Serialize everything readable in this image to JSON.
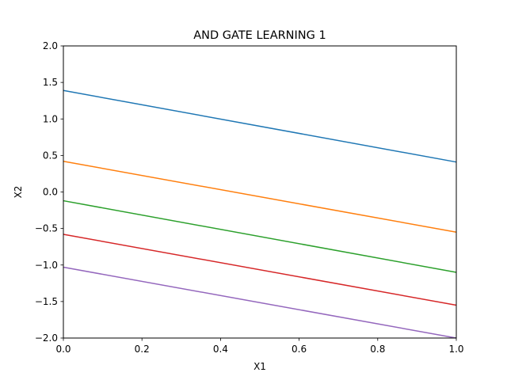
{
  "chart_data": {
    "type": "line",
    "title": "AND GATE LEARNING 1",
    "xlabel": "X1",
    "ylabel": "X2",
    "xlim": [
      0.0,
      1.0
    ],
    "ylim": [
      -2.0,
      2.0
    ],
    "xticks": [
      0.0,
      0.2,
      0.4,
      0.6,
      0.8,
      1.0
    ],
    "yticks": [
      -2.0,
      -1.5,
      -1.0,
      -0.5,
      0.0,
      0.5,
      1.0,
      1.5,
      2.0
    ],
    "xtick_labels": [
      "0.0",
      "0.2",
      "0.4",
      "0.6",
      "0.8",
      "1.0"
    ],
    "ytick_labels": [
      "−2.0",
      "−1.5",
      "−1.0",
      "−0.5",
      "0.0",
      "0.5",
      "1.0",
      "1.5",
      "2.0"
    ],
    "grid": false,
    "legend": "none",
    "series": [
      {
        "color": "#1f77b4",
        "x": [
          0.0,
          1.0
        ],
        "y": [
          1.39,
          0.41
        ]
      },
      {
        "color": "#ff7f0e",
        "x": [
          0.0,
          1.0
        ],
        "y": [
          0.42,
          -0.55
        ]
      },
      {
        "color": "#2ca02c",
        "x": [
          0.0,
          1.0
        ],
        "y": [
          -0.12,
          -1.1
        ]
      },
      {
        "color": "#d62728",
        "x": [
          0.0,
          1.0
        ],
        "y": [
          -0.58,
          -1.55
        ]
      },
      {
        "color": "#9467bd",
        "x": [
          0.0,
          1.0
        ],
        "y": [
          -1.03,
          -2.0
        ]
      }
    ]
  }
}
